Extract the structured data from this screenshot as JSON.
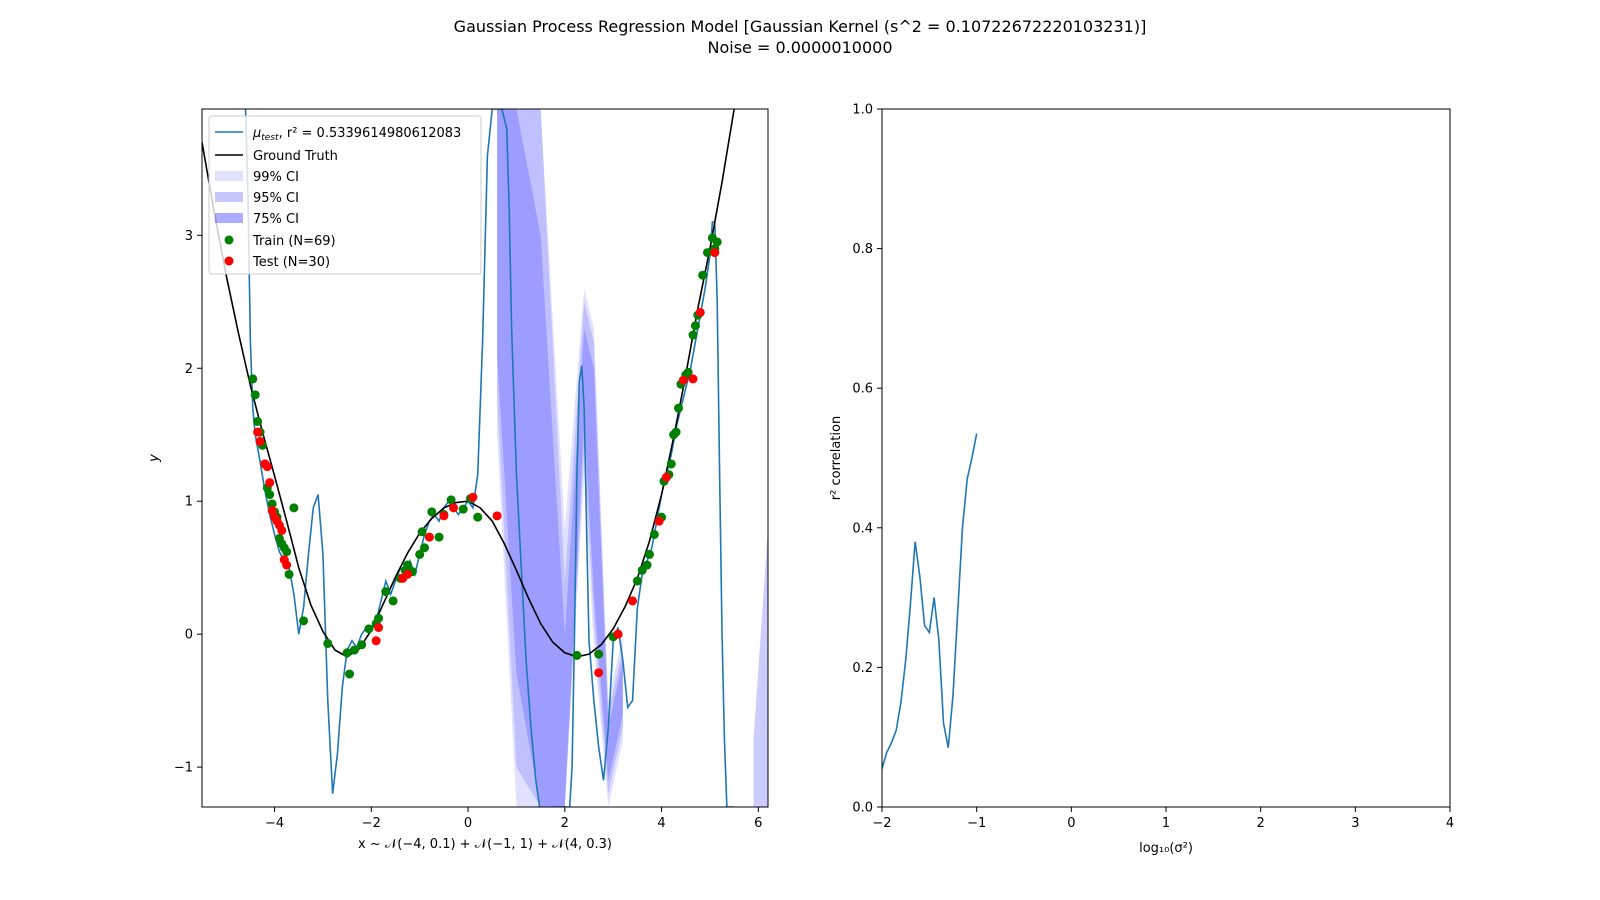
{
  "figure": {
    "title_line1": "Gaussian Process Regression Model [Gaussian Kernel (s^2 = 0.10722672220103231)]",
    "title_line2": "Noise = 0.0000010000"
  },
  "colors": {
    "model": "#1f77b4",
    "truth": "#000000",
    "ci": "#0000ff",
    "train": "#008000",
    "test": "#ff0000"
  },
  "chart_data": [
    {
      "type": "line",
      "xlabel": "x ~ 𝒩(−4, 0.1) + 𝒩(−1, 1) + 𝒩(4, 0.3)",
      "ylabel": "y",
      "xlim": [
        -5.5,
        6.2
      ],
      "ylim": [
        -1.3,
        3.95
      ],
      "xticks": [
        -4,
        -2,
        0,
        2,
        4,
        6
      ],
      "xtick_labels": [
        "−4",
        "−2",
        "0",
        "2",
        "4",
        "6"
      ],
      "yticks": [
        -1,
        0,
        1,
        2,
        3
      ],
      "ytick_labels": [
        "−1",
        "0",
        "1",
        "2",
        "3"
      ],
      "legend_position": "upper left",
      "legend": {
        "model_label": "μ",
        "model_sub": "test",
        "model_rest": ", r² = 0.5339614980612083",
        "truth": "Ground Truth",
        "ci99": "99% CI",
        "ci95": "95% CI",
        "ci75": "75% CI",
        "train": "Train (N=69)",
        "test": "Test (N=30)"
      },
      "ground_truth": {
        "x": [
          -5.5,
          -5.25,
          -5.0,
          -4.75,
          -4.5,
          -4.25,
          -4.0,
          -3.75,
          -3.5,
          -3.25,
          -3.0,
          -2.75,
          -2.5,
          -2.25,
          -2.0,
          -1.75,
          -1.5,
          -1.25,
          -1.0,
          -0.75,
          -0.5,
          -0.25,
          0.0,
          0.25,
          0.5,
          0.75,
          1.0,
          1.25,
          1.5,
          1.75,
          2.0,
          2.25,
          2.5,
          2.75,
          3.0,
          3.25,
          3.5,
          3.75,
          4.0,
          4.25,
          4.5,
          4.75,
          5.0,
          5.25,
          5.5
        ],
        "y": [
          3.7,
          3.18,
          2.7,
          2.27,
          1.87,
          1.52,
          1.19,
          0.85,
          0.5,
          0.22,
          0.02,
          -0.12,
          -0.17,
          -0.11,
          0.03,
          0.23,
          0.43,
          0.61,
          0.76,
          0.87,
          0.95,
          0.99,
          1.0,
          0.95,
          0.85,
          0.68,
          0.48,
          0.27,
          0.08,
          -0.06,
          -0.14,
          -0.17,
          -0.15,
          -0.08,
          0.04,
          0.21,
          0.42,
          0.7,
          1.05,
          1.48,
          1.95,
          2.45,
          2.9,
          3.4,
          3.95
        ]
      },
      "mean": {
        "x": [
          -4.6,
          -4.55,
          -4.5,
          -4.45,
          -4.4,
          -4.3,
          -4.2,
          -4.1,
          -4.0,
          -3.9,
          -3.8,
          -3.7,
          -3.6,
          -3.5,
          -3.4,
          -3.3,
          -3.2,
          -3.1,
          -3.0,
          -2.9,
          -2.8,
          -2.7,
          -2.6,
          -2.5,
          -2.4,
          -2.3,
          -2.2,
          -2.1,
          -2.0,
          -1.9,
          -1.8,
          -1.7,
          -1.6,
          -1.5,
          -1.4,
          -1.3,
          -1.2,
          -1.1,
          -1.0,
          -0.9,
          -0.8,
          -0.7,
          -0.6,
          -0.5,
          -0.4,
          -0.3,
          -0.2,
          -0.1,
          0.0,
          0.1,
          0.2,
          0.3,
          0.4,
          0.5,
          0.6,
          0.7,
          0.8,
          0.85,
          0.9,
          1.0,
          1.1,
          1.2,
          1.3,
          1.4,
          1.5,
          1.6,
          1.7,
          1.75,
          1.8,
          2.1,
          2.15,
          2.2,
          2.25,
          2.3,
          2.35,
          2.4,
          2.45,
          2.5,
          2.6,
          2.7,
          2.8,
          2.9,
          3.0,
          3.1,
          3.2,
          3.3,
          3.4,
          3.5,
          3.6,
          3.7,
          3.8,
          3.9,
          4.0,
          4.1,
          4.2,
          4.3,
          4.4,
          4.5,
          4.6,
          4.7,
          4.8,
          4.9,
          5.0,
          5.05,
          5.1,
          5.15,
          5.2,
          5.25,
          5.3,
          5.35,
          5.4,
          5.45,
          5.5
        ],
        "y": [
          3.95,
          3.3,
          2.2,
          1.7,
          1.5,
          1.3,
          1.08,
          0.9,
          0.75,
          0.62,
          0.55,
          0.5,
          0.3,
          0.0,
          0.2,
          0.6,
          0.95,
          1.05,
          0.6,
          -0.5,
          -1.2,
          -0.9,
          -0.4,
          -0.12,
          -0.05,
          -0.1,
          0.0,
          0.05,
          0.05,
          0.1,
          0.25,
          0.4,
          0.3,
          0.4,
          0.5,
          0.45,
          0.55,
          0.45,
          0.6,
          0.75,
          0.85,
          0.9,
          0.85,
          0.95,
          1.0,
          0.95,
          0.9,
          0.95,
          1.0,
          0.95,
          1.2,
          2.2,
          3.6,
          3.95,
          3.95,
          3.95,
          3.8,
          3.2,
          2.3,
          1.2,
          0.5,
          -0.2,
          -0.7,
          -1.1,
          -1.35,
          -1.45,
          -1.4,
          -1.3,
          -1.3,
          -1.3,
          -1.0,
          0.0,
          1.2,
          1.9,
          2.02,
          1.7,
          0.8,
          -0.05,
          -0.5,
          -0.85,
          -1.1,
          -0.7,
          -0.05,
          0.05,
          -0.2,
          -0.55,
          -0.5,
          0.2,
          0.45,
          0.55,
          0.65,
          0.85,
          1.05,
          1.2,
          1.35,
          1.55,
          1.7,
          1.85,
          2.0,
          2.2,
          2.4,
          2.6,
          2.85,
          3.1,
          3.1,
          2.5,
          1.2,
          0.0,
          -0.8,
          -1.3,
          -1.3,
          -1.3,
          -1.3
        ]
      },
      "ci_bands": [
        {
          "level": "99%",
          "x": [
            0.6,
            1.0,
            1.5,
            2.0,
            2.4,
            2.6,
            2.9,
            3.2
          ],
          "upper": [
            3.95,
            3.95,
            3.95,
            0.8,
            2.6,
            2.3,
            -0.5,
            0.0
          ],
          "lower": [
            1.5,
            -1.3,
            -1.3,
            -1.3,
            1.2,
            -0.1,
            -1.3,
            -0.8
          ],
          "opacity": 0.12
        },
        {
          "level": "95%",
          "x": [
            0.6,
            1.0,
            1.5,
            2.0,
            2.4,
            2.6,
            2.9,
            3.2
          ],
          "upper": [
            3.95,
            3.95,
            3.95,
            0.4,
            2.5,
            2.2,
            -0.6,
            -0.1
          ],
          "lower": [
            1.8,
            -1.0,
            -1.3,
            -1.3,
            1.4,
            0.1,
            -1.2,
            -0.7
          ],
          "opacity": 0.14
        },
        {
          "level": "75%",
          "x": [
            0.6,
            1.0,
            1.5,
            2.0,
            2.4,
            2.6,
            2.9,
            3.2
          ],
          "upper": [
            3.95,
            3.95,
            3.0,
            0.0,
            2.3,
            2.0,
            -0.7,
            -0.2
          ],
          "lower": [
            2.1,
            -0.3,
            -1.3,
            -1.3,
            1.6,
            0.3,
            -1.1,
            -0.6
          ],
          "opacity": 0.18
        }
      ],
      "right_edge_band": {
        "x": [
          5.9,
          6.2
        ],
        "upper": [
          -0.8,
          0.8
        ],
        "lower": [
          -1.3,
          -1.3
        ],
        "opacity": 0.2
      },
      "train": {
        "x": [
          -4.45,
          -4.4,
          -4.35,
          -4.3,
          -4.25,
          -4.2,
          -4.15,
          -4.1,
          -4.05,
          -4.0,
          -3.95,
          -3.9,
          -3.85,
          -3.8,
          -3.75,
          -3.7,
          -3.4,
          -2.9,
          -2.45,
          -2.35,
          -2.2,
          -2.05,
          -1.9,
          -1.85,
          -1.7,
          -1.55,
          -1.4,
          -1.25,
          -1.15,
          -1.0,
          -0.9,
          -0.75,
          -0.6,
          -0.5,
          -0.35,
          -0.1,
          0.05,
          0.2,
          2.25,
          2.7,
          3.0,
          3.1,
          3.5,
          3.6,
          3.7,
          3.75,
          3.85,
          4.0,
          4.05,
          4.15,
          4.2,
          4.25,
          4.3,
          4.35,
          4.4,
          4.5,
          4.55,
          4.65,
          4.7,
          4.75,
          4.85,
          4.95,
          5.05,
          5.1,
          5.15,
          -3.6,
          -1.3,
          -0.95,
          -2.5
        ],
        "y": [
          1.92,
          1.8,
          1.6,
          1.52,
          1.42,
          1.28,
          1.1,
          1.05,
          0.98,
          0.92,
          0.88,
          0.72,
          0.68,
          0.65,
          0.62,
          0.45,
          0.1,
          -0.07,
          -0.3,
          -0.12,
          -0.08,
          0.04,
          0.08,
          0.12,
          0.32,
          0.25,
          0.42,
          0.52,
          0.47,
          0.6,
          0.65,
          0.92,
          0.73,
          0.9,
          1.01,
          0.94,
          1.02,
          0.88,
          -0.16,
          -0.15,
          -0.02,
          0.0,
          0.4,
          0.48,
          0.52,
          0.6,
          0.75,
          0.88,
          1.15,
          1.2,
          1.28,
          1.5,
          1.52,
          1.7,
          1.88,
          1.95,
          1.97,
          2.25,
          2.32,
          2.4,
          2.7,
          2.87,
          2.98,
          2.9,
          2.95,
          0.95,
          0.48,
          0.77,
          -0.14
        ]
      },
      "test": {
        "x": [
          -4.35,
          -4.3,
          -4.2,
          -4.15,
          -4.1,
          -4.05,
          -4.0,
          -3.95,
          -3.9,
          -3.85,
          -3.8,
          -3.75,
          -1.9,
          -1.85,
          -1.35,
          -1.25,
          -0.8,
          -0.5,
          -0.3,
          0.1,
          0.6,
          2.7,
          3.1,
          3.4,
          3.95,
          4.1,
          4.45,
          4.65,
          4.8,
          5.1
        ],
        "y": [
          1.52,
          1.45,
          1.28,
          1.26,
          1.14,
          0.93,
          0.88,
          0.85,
          0.82,
          0.78,
          0.56,
          0.52,
          -0.05,
          0.05,
          0.42,
          0.45,
          0.73,
          0.89,
          0.95,
          1.03,
          0.89,
          -0.29,
          0.0,
          0.25,
          0.85,
          1.18,
          1.91,
          1.92,
          2.42,
          2.87
        ]
      }
    },
    {
      "type": "line",
      "xlabel": "log₁₀(σ²)",
      "ylabel": "r² correlation",
      "xlim": [
        -2,
        4
      ],
      "ylim": [
        0,
        1.0
      ],
      "xticks": [
        -2,
        -1,
        0,
        1,
        2,
        3,
        4
      ],
      "xtick_labels": [
        "−2",
        "−1",
        "0",
        "1",
        "2",
        "3",
        "4"
      ],
      "yticks": [
        0,
        0.2,
        0.4,
        0.6,
        0.8,
        1.0
      ],
      "ytick_labels": [
        "0.0",
        "0.2",
        "0.4",
        "0.6",
        "0.8",
        "1.0"
      ],
      "series": [
        {
          "x": [
            -2.0,
            -1.95,
            -1.9,
            -1.85,
            -1.8,
            -1.75,
            -1.7,
            -1.65,
            -1.6,
            -1.55,
            -1.5,
            -1.45,
            -1.4,
            -1.35,
            -1.3,
            -1.25,
            -1.2,
            -1.15,
            -1.1,
            -1.05,
            -1.0
          ],
          "y": [
            0.055,
            0.078,
            0.092,
            0.11,
            0.15,
            0.21,
            0.29,
            0.38,
            0.33,
            0.26,
            0.25,
            0.3,
            0.24,
            0.12,
            0.085,
            0.16,
            0.28,
            0.4,
            0.47,
            0.5,
            0.535
          ]
        }
      ]
    }
  ]
}
